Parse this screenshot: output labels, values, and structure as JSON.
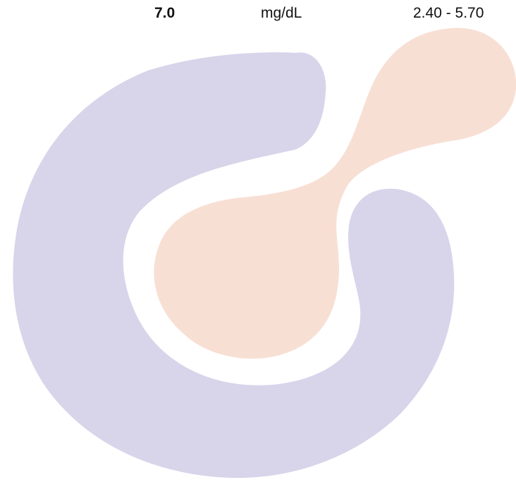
{
  "result": {
    "value": "7.0",
    "unit": "mg/dL",
    "reference_range": "2.40 - 5.70"
  },
  "watermark": {
    "primary_color": "#d8d4ea",
    "secondary_color": "#f8dfd4"
  }
}
